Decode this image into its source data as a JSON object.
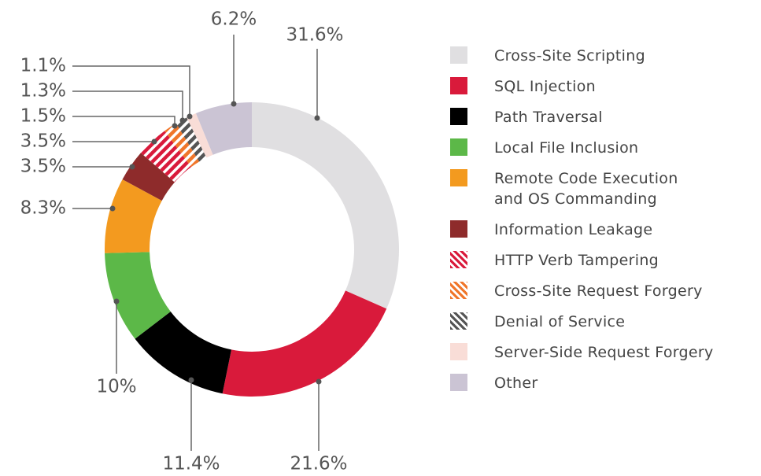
{
  "chart_data": {
    "type": "donut",
    "categories": [
      "Cross-Site Scripting",
      "SQL Injection",
      "Path Traversal",
      "Local File Inclusion",
      "Remote Code Execution\nand OS Commanding",
      "Information Leakage",
      "HTTP Verb Tampering",
      "Cross-Site Request Forgery",
      "Denial of Service",
      "Server-Side Request Forgery",
      "Other"
    ],
    "values": [
      31.6,
      21.6,
      11.4,
      10,
      8.3,
      3.5,
      3.5,
      1.5,
      1.3,
      1.1,
      6.2
    ],
    "value_labels": [
      "31.6%",
      "21.6%",
      "11.4%",
      "10%",
      "8.3%",
      "3.5%",
      "3.5%",
      "1.5%",
      "1.3%",
      "1.1%",
      "6.2%"
    ],
    "colors": [
      "#e0dfe1",
      "#d91a3b",
      "#000000",
      "#5cb848",
      "#f39a1f",
      "#8e2b2b",
      "#d91a3b",
      "#f0762a",
      "#555555",
      "#f9ddd7",
      "#cbc4d4"
    ],
    "hatched": [
      false,
      false,
      false,
      false,
      false,
      false,
      true,
      true,
      true,
      false,
      false
    ]
  }
}
